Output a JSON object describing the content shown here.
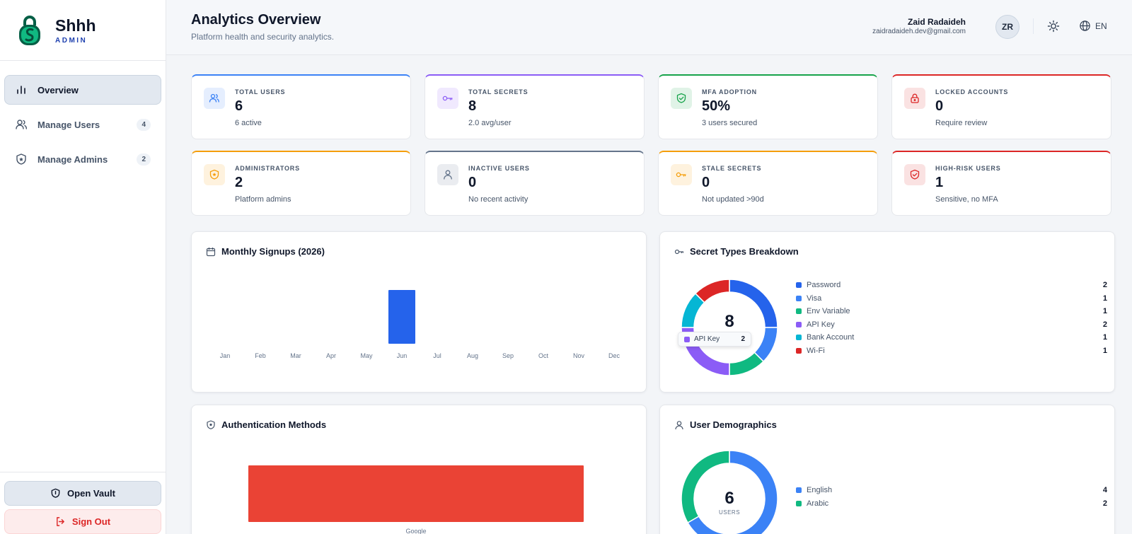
{
  "sidebar": {
    "brand_name": "Shhh",
    "brand_sub": "ADMIN",
    "nav": [
      {
        "label": "Overview",
        "count": "",
        "icon": "bar-chart-icon"
      },
      {
        "label": "Manage Users",
        "count": "4",
        "icon": "users-icon"
      },
      {
        "label": "Manage Admins",
        "count": "2",
        "icon": "shield-icon"
      }
    ],
    "open_vault": "Open Vault",
    "sign_out": "Sign Out"
  },
  "header": {
    "title": "Analytics Overview",
    "subtitle": "Platform health and security analytics.",
    "user_name": "Zaid Radaideh",
    "user_email": "zaidradaideh.dev@gmail.com",
    "avatar": "ZR",
    "language": "EN"
  },
  "stats": [
    {
      "label": "TOTAL USERS",
      "value": "6",
      "sub": "6 active",
      "color": "#3b82f6",
      "icon": "users-icon"
    },
    {
      "label": "TOTAL SECRETS",
      "value": "8",
      "sub": "2.0 avg/user",
      "color": "#8b5cf6",
      "icon": "key-icon"
    },
    {
      "label": "MFA ADOPTION",
      "value": "50%",
      "sub": "3 users secured",
      "color": "#16a34a",
      "icon": "shield-check-icon"
    },
    {
      "label": "LOCKED ACCOUNTS",
      "value": "0",
      "sub": "Require review",
      "color": "#dc2626",
      "icon": "lock-icon"
    },
    {
      "label": "ADMINISTRATORS",
      "value": "2",
      "sub": "Platform admins",
      "color": "#f59e0b",
      "icon": "shield-icon"
    },
    {
      "label": "INACTIVE USERS",
      "value": "0",
      "sub": "No recent activity",
      "color": "#64748b",
      "icon": "user-icon"
    },
    {
      "label": "STALE SECRETS",
      "value": "0",
      "sub": "Not updated >90d",
      "color": "#f59e0b",
      "icon": "key-icon"
    },
    {
      "label": "HIGH-RISK USERS",
      "value": "1",
      "sub": "Sensitive, no MFA",
      "color": "#dc2626",
      "icon": "shield-alert-icon"
    }
  ],
  "panels": {
    "signups_title": "Monthly Signups (2026)",
    "secret_types_title": "Secret Types Breakdown",
    "auth_title": "Authentication Methods",
    "demographics_title": "User Demographics"
  },
  "chart_data": [
    {
      "type": "bar",
      "title": "Monthly Signups (2026)",
      "categories": [
        "Jan",
        "Feb",
        "Mar",
        "Apr",
        "May",
        "Jun",
        "Jul",
        "Aug",
        "Sep",
        "Oct",
        "Nov",
        "Dec"
      ],
      "values": [
        0,
        0,
        0,
        0,
        0,
        6,
        0,
        0,
        0,
        0,
        0,
        0
      ],
      "ylim": [
        0,
        6
      ],
      "color": "#2563eb"
    },
    {
      "type": "pie",
      "title": "Secret Types Breakdown",
      "center_value": "8",
      "labels": [
        "Password",
        "Visa",
        "Env Variable",
        "API Key",
        "Bank Account",
        "Wi-Fi"
      ],
      "values": [
        2,
        1,
        1,
        2,
        1,
        1
      ],
      "colors": [
        "#2563eb",
        "#3b82f6",
        "#10b981",
        "#8b5cf6",
        "#06b6d4",
        "#dc2626"
      ],
      "tooltip": {
        "label": "API Key",
        "value": "2",
        "color": "#8b5cf6"
      }
    },
    {
      "type": "bar",
      "title": "Authentication Methods",
      "categories": [
        "Google"
      ],
      "values": [
        1
      ],
      "color": "#ea4335"
    },
    {
      "type": "pie",
      "title": "User Demographics",
      "center_value": "6",
      "center_label": "USERS",
      "labels": [
        "English",
        "Arabic"
      ],
      "values": [
        4,
        2
      ],
      "colors": [
        "#3b82f6",
        "#10b981"
      ]
    }
  ]
}
